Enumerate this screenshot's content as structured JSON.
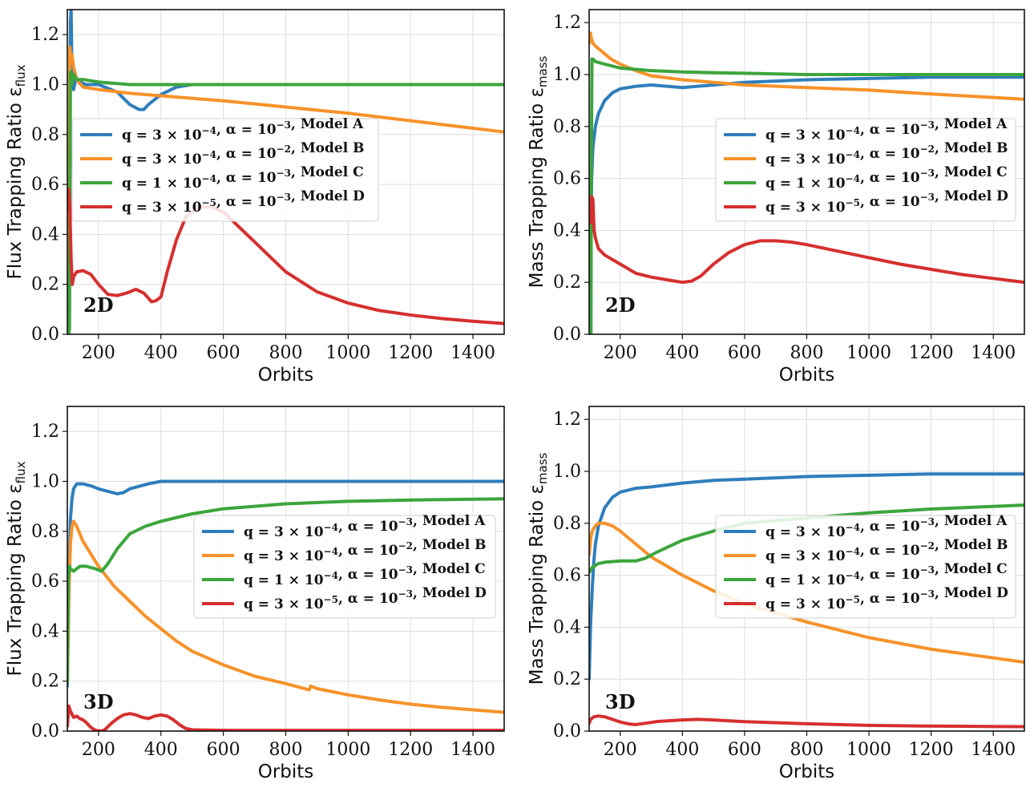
{
  "colors": {
    "model_a": "#2f7ebc",
    "model_b": "#f7922a",
    "model_c": "#3ca53c",
    "model_d": "#d62f2f"
  },
  "chart_data": [
    {
      "type": "line",
      "panel_label": "2D",
      "xlabel": "Orbits",
      "ylabel": "Flux Trapping Ratio ε_flux",
      "xlim": [
        100,
        1500
      ],
      "ylim": [
        0,
        1.3
      ],
      "xticks": [
        200,
        400,
        600,
        800,
        1000,
        1200,
        1400
      ],
      "yticks": [
        0.0,
        0.2,
        0.4,
        0.6,
        0.8,
        1.0,
        1.2
      ],
      "grid": true,
      "legend_position": "center-left",
      "series": [
        {
          "name": "q = 3 × 10⁻⁴, α = 10⁻³, Model A",
          "color_key": "model_a",
          "x": [
            105,
            110,
            112,
            115,
            120,
            125,
            130,
            140,
            160,
            200,
            260,
            300,
            330,
            345,
            360,
            400,
            450,
            500,
            550,
            600,
            800,
            1000,
            1500
          ],
          "y": [
            0.0,
            1.25,
            1.3,
            1.05,
            0.98,
            1.01,
            1.02,
            1.01,
            1.0,
            1.0,
            0.97,
            0.92,
            0.9,
            0.9,
            0.92,
            0.96,
            0.99,
            1.0,
            1.0,
            1.0,
            1.0,
            1.0,
            1.0
          ]
        },
        {
          "name": "q = 3 × 10⁻⁴, α = 10⁻², Model B",
          "color_key": "model_b",
          "x": [
            103,
            108,
            112,
            115,
            120,
            130,
            150,
            200,
            300,
            400,
            500,
            600,
            800,
            1000,
            1200,
            1500
          ],
          "y": [
            0.0,
            1.15,
            1.1,
            1.12,
            1.07,
            1.02,
            0.99,
            0.98,
            0.965,
            0.955,
            0.945,
            0.935,
            0.91,
            0.885,
            0.855,
            0.81
          ]
        },
        {
          "name": "q = 1 × 10⁻⁴, α = 10⁻³, Model C",
          "color_key": "model_c",
          "x": [
            105,
            107,
            110,
            115,
            120,
            130,
            150,
            200,
            300,
            400,
            500,
            1500
          ],
          "y": [
            0.0,
            0.02,
            1.05,
            1.0,
            1.04,
            1.02,
            1.02,
            1.01,
            1.0,
            1.0,
            1.0,
            1.0
          ]
        },
        {
          "name": "q = 3 × 10⁻⁵, α = 10⁻³, Model D",
          "color_key": "model_d",
          "x": [
            100,
            104,
            108,
            112,
            116,
            120,
            130,
            150,
            175,
            200,
            230,
            260,
            290,
            320,
            345,
            370,
            385,
            400,
            420,
            450,
            480,
            520,
            560,
            600,
            650,
            700,
            750,
            800,
            900,
            1000,
            1100,
            1200,
            1300,
            1400,
            1500
          ],
          "y": [
            0.5,
            0.58,
            0.52,
            0.3,
            0.2,
            0.23,
            0.25,
            0.255,
            0.24,
            0.2,
            0.16,
            0.155,
            0.165,
            0.18,
            0.165,
            0.13,
            0.135,
            0.15,
            0.25,
            0.38,
            0.47,
            0.51,
            0.51,
            0.49,
            0.43,
            0.37,
            0.31,
            0.25,
            0.17,
            0.125,
            0.095,
            0.077,
            0.063,
            0.052,
            0.043
          ]
        }
      ]
    },
    {
      "type": "line",
      "panel_label": "2D",
      "xlabel": "Orbits",
      "ylabel": "Mass Trapping Ratio ε_mass",
      "xlim": [
        100,
        1500
      ],
      "ylim": [
        0,
        1.25
      ],
      "xticks": [
        200,
        400,
        600,
        800,
        1000,
        1200,
        1400
      ],
      "yticks": [
        0.0,
        0.2,
        0.4,
        0.6,
        0.8,
        1.0,
        1.2
      ],
      "grid": true,
      "legend_position": "center-right",
      "series": [
        {
          "name": "q = 3 × 10⁻⁴, α = 10⁻³, Model A",
          "color_key": "model_a",
          "x": [
            100,
            105,
            108,
            112,
            120,
            130,
            150,
            175,
            200,
            250,
            300,
            350,
            400,
            450,
            500,
            600,
            800,
            1000,
            1200,
            1500
          ],
          "y": [
            0.0,
            0.3,
            0.6,
            0.72,
            0.8,
            0.85,
            0.9,
            0.93,
            0.945,
            0.955,
            0.96,
            0.955,
            0.95,
            0.955,
            0.96,
            0.97,
            0.98,
            0.985,
            0.99,
            0.99
          ]
        },
        {
          "name": "q = 3 × 10⁻⁴, α = 10⁻², Model B",
          "color_key": "model_b",
          "x": [
            100,
            104,
            107,
            112,
            120,
            140,
            170,
            200,
            250,
            300,
            400,
            500,
            600,
            800,
            1000,
            1200,
            1500
          ],
          "y": [
            1.12,
            1.16,
            1.14,
            1.12,
            1.11,
            1.09,
            1.06,
            1.04,
            1.015,
            0.995,
            0.98,
            0.97,
            0.96,
            0.95,
            0.94,
            0.925,
            0.905
          ]
        },
        {
          "name": "q = 1 × 10⁻⁴, α = 10⁻³, Model C",
          "color_key": "model_c",
          "x": [
            106,
            107,
            109,
            112,
            120,
            150,
            200,
            300,
            400,
            600,
            800,
            1000,
            1500
          ],
          "y": [
            0.0,
            0.6,
            1.06,
            1.06,
            1.05,
            1.04,
            1.025,
            1.015,
            1.01,
            1.005,
            1.0,
            1.0,
            1.0
          ]
        },
        {
          "name": "q = 3 × 10⁻⁵, α = 10⁻³, Model D",
          "color_key": "model_d",
          "x": [
            105,
            108,
            112,
            116,
            120,
            130,
            150,
            200,
            250,
            300,
            350,
            400,
            430,
            460,
            500,
            550,
            600,
            650,
            700,
            750,
            800,
            900,
            1000,
            1100,
            1200,
            1300,
            1400,
            1500
          ],
          "y": [
            0.43,
            0.53,
            0.52,
            0.4,
            0.37,
            0.33,
            0.305,
            0.27,
            0.235,
            0.22,
            0.21,
            0.2,
            0.205,
            0.225,
            0.27,
            0.315,
            0.345,
            0.36,
            0.36,
            0.355,
            0.345,
            0.32,
            0.295,
            0.27,
            0.25,
            0.23,
            0.215,
            0.2
          ]
        }
      ]
    },
    {
      "type": "line",
      "panel_label": "3D",
      "xlabel": "Orbits",
      "ylabel": "Flux Trapping Ratio ε_flux",
      "xlim": [
        100,
        1500
      ],
      "ylim": [
        0,
        1.3
      ],
      "xticks": [
        200,
        400,
        600,
        800,
        1000,
        1200,
        1400
      ],
      "yticks": [
        0.0,
        0.2,
        0.4,
        0.6,
        0.8,
        1.0,
        1.2
      ],
      "grid": true,
      "legend_position": "center-right",
      "series": [
        {
          "name": "q = 3 × 10⁻⁴, α = 10⁻³, Model A",
          "color_key": "model_a",
          "x": [
            100,
            105,
            110,
            115,
            120,
            130,
            150,
            180,
            200,
            230,
            260,
            280,
            300,
            330,
            360,
            400,
            450,
            500,
            1500
          ],
          "y": [
            0.18,
            0.6,
            0.85,
            0.93,
            0.97,
            0.99,
            0.99,
            0.98,
            0.97,
            0.96,
            0.95,
            0.955,
            0.97,
            0.98,
            0.99,
            1.0,
            1.0,
            1.0,
            1.0
          ]
        },
        {
          "name": "q = 3 × 10⁻⁴, α = 10⁻², Model B",
          "color_key": "model_b",
          "x": [
            100,
            105,
            110,
            115,
            120,
            130,
            150,
            175,
            200,
            250,
            300,
            350,
            400,
            450,
            500,
            600,
            700,
            800,
            875,
            880,
            900,
            1000,
            1100,
            1200,
            1300,
            1400,
            1500
          ],
          "y": [
            0.2,
            0.55,
            0.75,
            0.82,
            0.84,
            0.82,
            0.76,
            0.71,
            0.66,
            0.58,
            0.52,
            0.46,
            0.41,
            0.36,
            0.32,
            0.265,
            0.22,
            0.19,
            0.165,
            0.18,
            0.17,
            0.145,
            0.125,
            0.108,
            0.095,
            0.085,
            0.075
          ]
        },
        {
          "name": "q = 1 × 10⁻⁴, α = 10⁻³, Model C",
          "color_key": "model_c",
          "x": [
            100,
            103,
            107,
            110,
            120,
            140,
            160,
            190,
            210,
            230,
            260,
            300,
            350,
            400,
            500,
            600,
            700,
            800,
            1000,
            1200,
            1500
          ],
          "y": [
            0.2,
            0.6,
            0.66,
            0.65,
            0.64,
            0.66,
            0.66,
            0.65,
            0.64,
            0.67,
            0.73,
            0.79,
            0.82,
            0.84,
            0.87,
            0.89,
            0.9,
            0.91,
            0.92,
            0.925,
            0.93
          ]
        },
        {
          "name": "q = 3 × 10⁻⁵, α = 10⁻³, Model D",
          "color_key": "model_d",
          "x": [
            100,
            105,
            110,
            120,
            130,
            140,
            150,
            160,
            175,
            190,
            210,
            220,
            240,
            260,
            280,
            300,
            320,
            340,
            360,
            380,
            400,
            420,
            440,
            460,
            480,
            500,
            550,
            600,
            800,
            1000,
            1500
          ],
          "y": [
            0.02,
            0.1,
            0.08,
            0.055,
            0.06,
            0.05,
            0.045,
            0.035,
            0.015,
            0.003,
            0.0,
            0.005,
            0.03,
            0.05,
            0.065,
            0.07,
            0.065,
            0.055,
            0.05,
            0.06,
            0.065,
            0.06,
            0.045,
            0.025,
            0.01,
            0.005,
            0.004,
            0.003,
            0.003,
            0.003,
            0.003
          ]
        }
      ]
    },
    {
      "type": "line",
      "panel_label": "3D",
      "xlabel": "Orbits",
      "ylabel": "Mass Trapping Ratio ε_mass",
      "xlim": [
        100,
        1500
      ],
      "ylim": [
        0,
        1.25
      ],
      "xticks": [
        200,
        400,
        600,
        800,
        1000,
        1200,
        1400
      ],
      "yticks": [
        0.0,
        0.2,
        0.4,
        0.6,
        0.8,
        1.0,
        1.2
      ],
      "grid": true,
      "legend_position": "center-right",
      "series": [
        {
          "name": "q = 3 × 10⁻⁴, α = 10⁻³, Model A",
          "color_key": "model_a",
          "x": [
            100,
            105,
            110,
            115,
            120,
            130,
            150,
            175,
            200,
            250,
            300,
            400,
            500,
            600,
            800,
            1000,
            1200,
            1500
          ],
          "y": [
            0.2,
            0.42,
            0.55,
            0.65,
            0.72,
            0.79,
            0.86,
            0.9,
            0.92,
            0.935,
            0.94,
            0.955,
            0.965,
            0.97,
            0.98,
            0.985,
            0.99,
            0.99
          ]
        },
        {
          "name": "q = 3 × 10⁻⁴, α = 10⁻², Model B",
          "color_key": "model_b",
          "x": [
            100,
            105,
            110,
            120,
            130,
            140,
            150,
            175,
            200,
            250,
            300,
            400,
            500,
            600,
            800,
            1000,
            1200,
            1500
          ],
          "y": [
            0.68,
            0.74,
            0.77,
            0.79,
            0.8,
            0.8,
            0.8,
            0.79,
            0.77,
            0.72,
            0.67,
            0.6,
            0.54,
            0.49,
            0.42,
            0.36,
            0.315,
            0.265
          ]
        },
        {
          "name": "q = 1 × 10⁻⁴, α = 10⁻³, Model C",
          "color_key": "model_c",
          "x": [
            100,
            110,
            130,
            150,
            200,
            250,
            280,
            320,
            400,
            500,
            600,
            800,
            1000,
            1200,
            1500
          ],
          "y": [
            0.61,
            0.63,
            0.645,
            0.65,
            0.655,
            0.655,
            0.665,
            0.69,
            0.735,
            0.77,
            0.8,
            0.82,
            0.84,
            0.855,
            0.87
          ]
        },
        {
          "name": "q = 3 × 10⁻⁵, α = 10⁻³, Model D",
          "color_key": "model_d",
          "x": [
            100,
            105,
            115,
            130,
            150,
            175,
            200,
            230,
            250,
            280,
            320,
            400,
            450,
            500,
            600,
            800,
            1000,
            1200,
            1500
          ],
          "y": [
            0.03,
            0.045,
            0.055,
            0.058,
            0.055,
            0.045,
            0.035,
            0.027,
            0.025,
            0.03,
            0.037,
            0.043,
            0.045,
            0.043,
            0.036,
            0.028,
            0.022,
            0.019,
            0.017
          ]
        }
      ]
    }
  ]
}
